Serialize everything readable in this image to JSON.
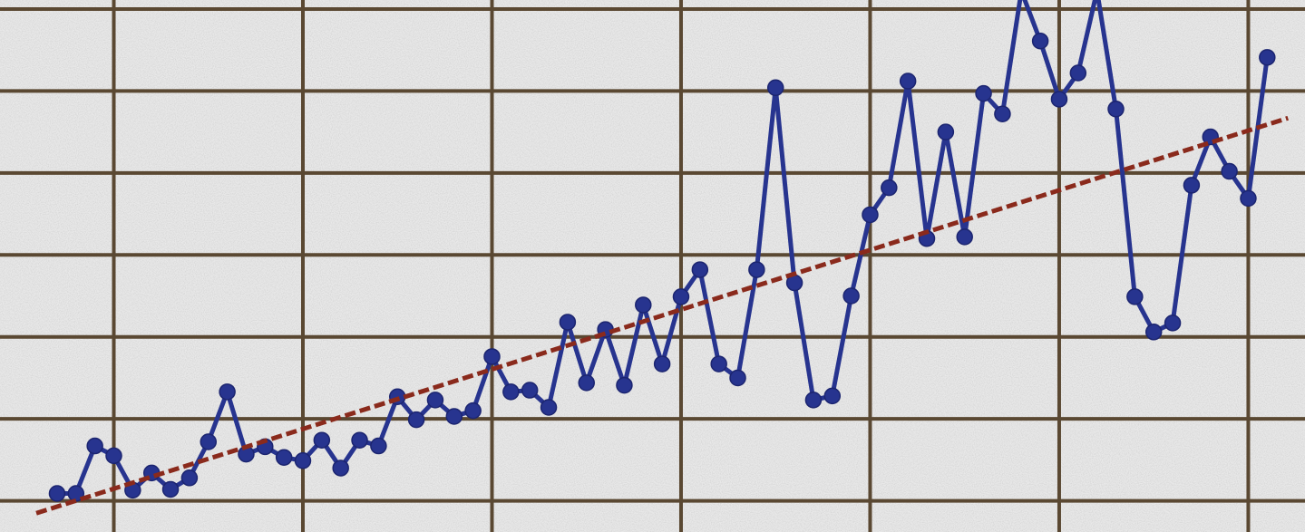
{
  "chart_data": {
    "type": "line",
    "x": [
      0,
      1,
      2,
      3,
      4,
      5,
      6,
      7,
      8,
      9,
      10,
      11,
      12,
      13,
      14,
      15,
      16,
      17,
      18,
      19,
      20,
      21,
      22,
      23,
      24,
      25,
      26,
      27,
      28,
      29,
      30,
      31,
      32,
      33,
      34,
      35,
      36,
      37,
      38,
      39,
      40,
      41,
      42,
      43,
      44,
      45,
      46,
      47,
      48,
      49,
      50,
      51,
      52,
      53,
      54,
      55,
      56,
      57,
      58,
      59,
      60,
      61,
      62,
      63,
      64
    ],
    "series": [
      {
        "color": "#27348f",
        "marker": true,
        "values": [
          0.09,
          0.09,
          0.67,
          0.55,
          0.13,
          0.34,
          0.14,
          0.28,
          0.72,
          1.33,
          0.57,
          0.66,
          0.53,
          0.49,
          0.74,
          0.4,
          0.74,
          0.67,
          1.27,
          0.99,
          1.23,
          1.03,
          1.1,
          1.76,
          1.33,
          1.35,
          1.14,
          2.18,
          1.44,
          2.09,
          1.41,
          2.39,
          1.67,
          2.49,
          2.82,
          1.67,
          1.5,
          2.82,
          5.04,
          2.66,
          1.23,
          1.28,
          2.5,
          3.49,
          3.82,
          5.12,
          3.2,
          4.5,
          3.22,
          4.97,
          4.72,
          6.22,
          5.61,
          4.9,
          5.22,
          6.22,
          4.78,
          2.49,
          2.06,
          2.17,
          3.85,
          4.44,
          4.02,
          3.69,
          5.41
        ]
      },
      {
        "color": "#8a2a1c",
        "dashed": true,
        "x": [
          -1.1,
          65.1
        ],
        "values": [
          -0.15,
          4.67
        ]
      }
    ],
    "xlim": [
      -3.02,
      66.0
    ],
    "ylim": [
      -0.38,
      6.11
    ],
    "xticks": [
      3,
      13,
      23,
      33,
      43,
      53,
      63
    ],
    "yticks": [
      0,
      1,
      2,
      3,
      4,
      5,
      6
    ],
    "grid": true,
    "grid_color": "#5a4832"
  }
}
